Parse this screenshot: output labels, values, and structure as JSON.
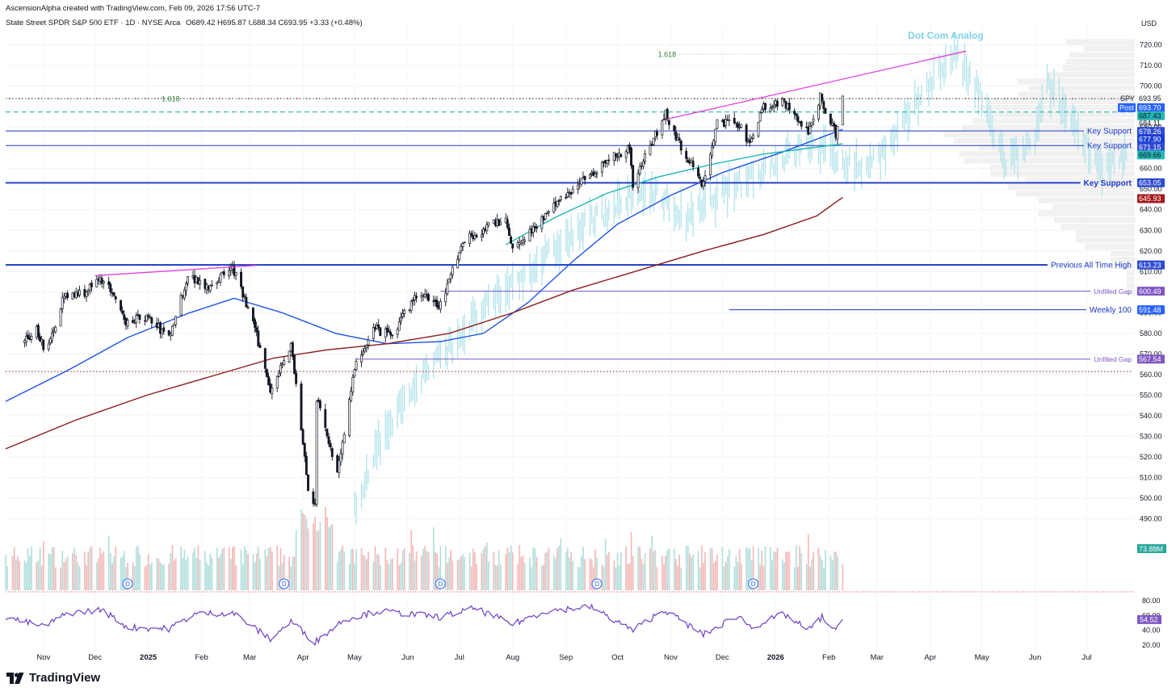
{
  "header": {
    "attribution": "AscensionAlpha created with TradingView.com, Feb 09, 2026 17:56 UTC-7",
    "symbol_line": "State Street SPDR S&P 500 ETF · 1D · NYSE Arca",
    "ohlc": "O689.42  H695.87  L688.34  C693.95  +3.33 (+0.48%)"
  },
  "brand": {
    "name": "TradingView"
  },
  "colors": {
    "candle": "#131722",
    "analog": "#b2e3ea",
    "ma_blue": "#1e53e5",
    "ma_teal": "#22b5b5",
    "ma_maroon": "#8b1a1a",
    "support": "#1a36c8",
    "wedge": "#e040e0",
    "gap": "#7e57c2",
    "rsi": "#6a3fc6",
    "vol_up": "#b2dfdb",
    "vol_down": "#f4b9b9"
  },
  "chart_data": {
    "type": "candlestick",
    "ylabel": "USD",
    "ylim": [
      455,
      730
    ],
    "x_ticks": [
      "Nov",
      "Dec",
      "2025",
      "Feb",
      "Mar",
      "Apr",
      "May",
      "Jun",
      "Jul",
      "Aug",
      "Sep",
      "Oct",
      "Nov",
      "Dec",
      "2026",
      "Feb",
      "Mar",
      "Apr",
      "May",
      "Jun",
      "Jul"
    ],
    "y_ticks": [
      720,
      710,
      700,
      690,
      680,
      670,
      660,
      650,
      640,
      630,
      620,
      610,
      600,
      590,
      580,
      570,
      560,
      550,
      540,
      530,
      520,
      510,
      500,
      490
    ],
    "y_tick_labels": [
      "720.00",
      "710.00",
      "700.00",
      "690.00",
      "680.00",
      "670.00",
      "660.00",
      "650.00",
      "640.00",
      "630.00",
      "620.00",
      "610.00",
      "600.00",
      "590.00",
      "580.00",
      "570.00",
      "560.00",
      "550.00",
      "540.00",
      "530.00",
      "520.00",
      "510.00",
      "500.00",
      "490.00"
    ],
    "price_path": [
      {
        "date": "2024-10-20",
        "price": 575
      },
      {
        "date": "2024-10-28",
        "price": 582
      },
      {
        "date": "2024-11-03",
        "price": 570
      },
      {
        "date": "2024-11-12",
        "price": 597
      },
      {
        "date": "2024-11-25",
        "price": 600
      },
      {
        "date": "2024-12-06",
        "price": 607
      },
      {
        "date": "2024-12-18",
        "price": 586
      },
      {
        "date": "2024-12-31",
        "price": 588
      },
      {
        "date": "2025-01-13",
        "price": 578
      },
      {
        "date": "2025-01-24",
        "price": 608
      },
      {
        "date": "2025-02-05",
        "price": 603
      },
      {
        "date": "2025-02-19",
        "price": 612
      },
      {
        "date": "2025-03-03",
        "price": 585
      },
      {
        "date": "2025-03-13",
        "price": 553
      },
      {
        "date": "2025-03-25",
        "price": 575
      },
      {
        "date": "2025-04-04",
        "price": 505
      },
      {
        "date": "2025-04-08",
        "price": 496
      },
      {
        "date": "2025-04-09",
        "price": 548
      },
      {
        "date": "2025-04-21",
        "price": 513
      },
      {
        "date": "2025-05-02",
        "price": 566
      },
      {
        "date": "2025-05-12",
        "price": 582
      },
      {
        "date": "2025-05-23",
        "price": 579
      },
      {
        "date": "2025-06-06",
        "price": 599
      },
      {
        "date": "2025-06-20",
        "price": 594
      },
      {
        "date": "2025-07-03",
        "price": 625
      },
      {
        "date": "2025-07-28",
        "price": 636
      },
      {
        "date": "2025-08-01",
        "price": 621
      },
      {
        "date": "2025-08-29",
        "price": 645
      },
      {
        "date": "2025-09-23",
        "price": 663
      },
      {
        "date": "2025-10-08",
        "price": 670
      },
      {
        "date": "2025-10-10",
        "price": 653
      },
      {
        "date": "2025-10-29",
        "price": 687
      },
      {
        "date": "2025-11-07",
        "price": 670
      },
      {
        "date": "2025-11-20",
        "price": 652
      },
      {
        "date": "2025-11-28",
        "price": 683
      },
      {
        "date": "2025-12-11",
        "price": 681
      },
      {
        "date": "2025-12-17",
        "price": 671
      },
      {
        "date": "2025-12-24",
        "price": 690
      },
      {
        "date": "2026-01-06",
        "price": 692
      },
      {
        "date": "2026-01-20",
        "price": 677
      },
      {
        "date": "2026-01-27",
        "price": 695
      },
      {
        "date": "2026-02-05",
        "price": 677
      },
      {
        "date": "2026-02-09",
        "price": 693.95
      }
    ],
    "analog_path": [
      {
        "date": "2025-05-01",
        "price": 497
      },
      {
        "date": "2025-05-20",
        "price": 535
      },
      {
        "date": "2025-06-10",
        "price": 560
      },
      {
        "date": "2025-06-30",
        "price": 578
      },
      {
        "date": "2025-07-20",
        "price": 595
      },
      {
        "date": "2025-08-10",
        "price": 610
      },
      {
        "date": "2025-09-01",
        "price": 625
      },
      {
        "date": "2025-09-25",
        "price": 640
      },
      {
        "date": "2025-10-20",
        "price": 650
      },
      {
        "date": "2025-11-10",
        "price": 635
      },
      {
        "date": "2025-12-01",
        "price": 648
      },
      {
        "date": "2025-12-25",
        "price": 660
      },
      {
        "date": "2026-01-20",
        "price": 672
      },
      {
        "date": "2026-02-20",
        "price": 660
      },
      {
        "date": "2026-03-10",
        "price": 672
      },
      {
        "date": "2026-03-30",
        "price": 700
      },
      {
        "date": "2026-04-15",
        "price": 716
      },
      {
        "date": "2026-04-30",
        "price": 695
      },
      {
        "date": "2026-05-15",
        "price": 662
      },
      {
        "date": "2026-05-31",
        "price": 672
      },
      {
        "date": "2026-06-08",
        "price": 700
      },
      {
        "date": "2026-06-25",
        "price": 680
      },
      {
        "date": "2026-07-10",
        "price": 660
      },
      {
        "date": "2026-07-25",
        "price": 665
      }
    ],
    "moving_averages": [
      {
        "color_key": "ma_blue",
        "points": [
          {
            "date": "2024-10-10",
            "price": 547
          },
          {
            "date": "2024-11-15",
            "price": 562
          },
          {
            "date": "2024-12-20",
            "price": 578
          },
          {
            "date": "2025-01-25",
            "price": 590
          },
          {
            "date": "2025-02-20",
            "price": 597
          },
          {
            "date": "2025-03-20",
            "price": 590
          },
          {
            "date": "2025-04-20",
            "price": 580
          },
          {
            "date": "2025-05-20",
            "price": 575
          },
          {
            "date": "2025-06-20",
            "price": 576
          },
          {
            "date": "2025-07-15",
            "price": 580
          },
          {
            "date": "2025-08-10",
            "price": 595
          },
          {
            "date": "2025-09-05",
            "price": 615
          },
          {
            "date": "2025-10-01",
            "price": 633
          },
          {
            "date": "2025-11-01",
            "price": 647
          },
          {
            "date": "2025-12-01",
            "price": 658
          },
          {
            "date": "2026-01-05",
            "price": 668
          },
          {
            "date": "2026-02-09",
            "price": 679
          }
        ]
      },
      {
        "color_key": "ma_teal",
        "points": [
          {
            "date": "2025-07-28",
            "price": 623
          },
          {
            "date": "2025-08-25",
            "price": 636
          },
          {
            "date": "2025-09-25",
            "price": 648
          },
          {
            "date": "2025-10-25",
            "price": 656
          },
          {
            "date": "2025-11-25",
            "price": 662
          },
          {
            "date": "2025-12-25",
            "price": 667
          },
          {
            "date": "2026-02-09",
            "price": 672
          }
        ]
      },
      {
        "color_key": "ma_maroon",
        "points": [
          {
            "date": "2024-10-10",
            "price": 524
          },
          {
            "date": "2024-11-20",
            "price": 538
          },
          {
            "date": "2024-12-31",
            "price": 550
          },
          {
            "date": "2025-02-10",
            "price": 560
          },
          {
            "date": "2025-03-15",
            "price": 568
          },
          {
            "date": "2025-04-15",
            "price": 572
          },
          {
            "date": "2025-05-20",
            "price": 575
          },
          {
            "date": "2025-06-25",
            "price": 580
          },
          {
            "date": "2025-08-01",
            "price": 590
          },
          {
            "date": "2025-09-05",
            "price": 601
          },
          {
            "date": "2025-10-15",
            "price": 611
          },
          {
            "date": "2025-11-20",
            "price": 620
          },
          {
            "date": "2025-12-25",
            "price": 628
          },
          {
            "date": "2026-01-25",
            "price": 637
          },
          {
            "date": "2026-02-09",
            "price": 646
          }
        ]
      }
    ],
    "horizontal_lines": [
      {
        "price": 678.26,
        "label": "Key Support",
        "color_key": "support",
        "style": "solid"
      },
      {
        "price": 671.15,
        "label": "Key Support",
        "color_key": "support",
        "style": "solid"
      },
      {
        "price": 653.05,
        "label": "Key Support",
        "color_key": "support",
        "style": "solid",
        "bold": true
      },
      {
        "price": 613.23,
        "label": "Previous All Time High",
        "color_key": "support",
        "style": "solid",
        "bold": true
      },
      {
        "price": 600.49,
        "label": "Unfilled Gap",
        "color_key": "gap",
        "style": "solid",
        "from": "2025-06-20"
      },
      {
        "price": 591.48,
        "label": "Weekly 100",
        "color_key": "support",
        "style": "solid",
        "from": "2025-12-05"
      },
      {
        "price": 567.54,
        "label": "Unfilled Gap",
        "color_key": "gap",
        "style": "solid",
        "from": "2025-05-02"
      },
      {
        "price": 561.5,
        "label": "",
        "color_key": "ma_maroon",
        "style": "dotted"
      },
      {
        "price": 693.95,
        "label": "",
        "color_key": "candle",
        "style": "dotted"
      },
      {
        "price": 687.43,
        "label": "",
        "color_key": "ma_teal",
        "style": "dashed"
      }
    ],
    "fib_levels": [
      {
        "label": "1.618",
        "price": 693.9,
        "from": "2024-10-10"
      },
      {
        "label": "1.618",
        "price": 715.5,
        "from": "2025-10-25"
      }
    ],
    "wedge_lines": [
      {
        "from": {
          "date": "2024-12-01",
          "price": 608
        },
        "to": {
          "date": "2025-03-05",
          "price": 613
        }
      },
      {
        "from": {
          "date": "2025-10-30",
          "price": 684
        },
        "to": {
          "date": "2026-04-22",
          "price": 717
        }
      }
    ],
    "annotations": [
      {
        "text": "Dot Com Analog",
        "date": "2026-04-10",
        "price": 723
      }
    ],
    "price_tags": [
      {
        "text": "SPY",
        "price": 693.95,
        "style": "plain"
      },
      {
        "text": "693.95",
        "price": 693.95,
        "style": "plain"
      },
      {
        "text": "Post",
        "price": 689.5,
        "style": "post"
      },
      {
        "text": "693.70",
        "price": 689.5,
        "style": "blue"
      },
      {
        "text": "687.43",
        "price": 685.6,
        "style": "teal"
      },
      {
        "text": "684.11",
        "price": 682.0,
        "style": "plain"
      },
      {
        "text": "678.26",
        "price": 678.0,
        "style": "navy"
      },
      {
        "text": "677.90",
        "price": 674.2,
        "style": "darkblue"
      },
      {
        "text": "671.15",
        "price": 670.4,
        "style": "navy"
      },
      {
        "text": "669.66",
        "price": 666.6,
        "style": "teal"
      },
      {
        "text": "653.05",
        "price": 653.05,
        "style": "navy"
      },
      {
        "text": "645.93",
        "price": 645.4,
        "style": "maroon"
      },
      {
        "text": "613.23",
        "price": 613.23,
        "style": "navy"
      },
      {
        "text": "600.49",
        "price": 600.49,
        "style": "purple"
      },
      {
        "text": "591.48",
        "price": 591.48,
        "style": "blue"
      },
      {
        "text": "567.54",
        "price": 567.54,
        "style": "purple"
      }
    ],
    "volume_tag": "73.88M",
    "dividend_marker": "D",
    "dividend_dates": [
      "2024-12-20",
      "2025-03-21",
      "2025-06-20",
      "2025-09-19",
      "2025-12-19"
    ],
    "rsi": {
      "value_tag": "54.52",
      "ylim": [
        10,
        90
      ],
      "y_ticks": [
        80,
        60,
        40,
        20
      ],
      "y_tick_labels": [
        "80.00",
        "60.00",
        "40.00",
        "20.00"
      ],
      "path": [
        {
          "date": "2024-10-10",
          "value": 58
        },
        {
          "date": "2024-11-01",
          "value": 45
        },
        {
          "date": "2024-11-15",
          "value": 63
        },
        {
          "date": "2024-12-05",
          "value": 68
        },
        {
          "date": "2024-12-20",
          "value": 44
        },
        {
          "date": "2025-01-13",
          "value": 42
        },
        {
          "date": "2025-01-28",
          "value": 62
        },
        {
          "date": "2025-02-19",
          "value": 64
        },
        {
          "date": "2025-03-13",
          "value": 28
        },
        {
          "date": "2025-03-25",
          "value": 52
        },
        {
          "date": "2025-04-08",
          "value": 24
        },
        {
          "date": "2025-04-25",
          "value": 55
        },
        {
          "date": "2025-05-15",
          "value": 66
        },
        {
          "date": "2025-06-20",
          "value": 58
        },
        {
          "date": "2025-07-10",
          "value": 70
        },
        {
          "date": "2025-08-01",
          "value": 48
        },
        {
          "date": "2025-08-20",
          "value": 66
        },
        {
          "date": "2025-09-15",
          "value": 72
        },
        {
          "date": "2025-10-10",
          "value": 40
        },
        {
          "date": "2025-10-28",
          "value": 68
        },
        {
          "date": "2025-11-20",
          "value": 34
        },
        {
          "date": "2025-12-10",
          "value": 60
        },
        {
          "date": "2025-12-18",
          "value": 44
        },
        {
          "date": "2026-01-06",
          "value": 62
        },
        {
          "date": "2026-01-20",
          "value": 40
        },
        {
          "date": "2026-01-28",
          "value": 58
        },
        {
          "date": "2026-02-05",
          "value": 38
        },
        {
          "date": "2026-02-09",
          "value": 54.52
        }
      ]
    }
  }
}
